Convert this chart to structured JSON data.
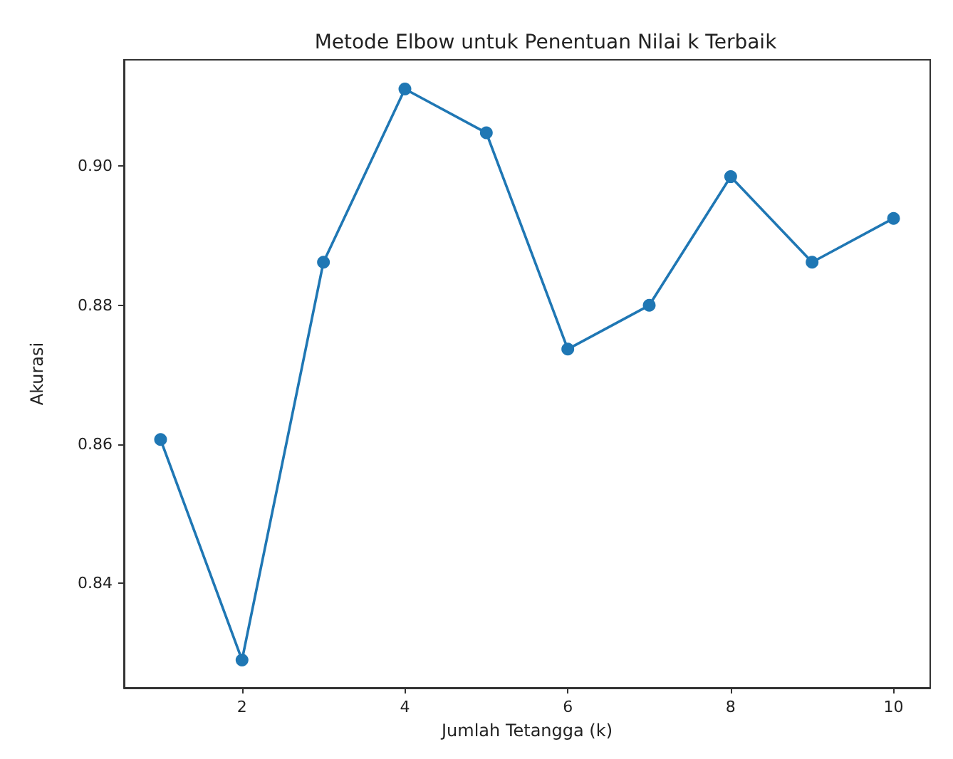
{
  "chart_data": {
    "type": "line",
    "title": "Metode Elbow untuk Penentuan Nilai k Terbaik",
    "xlabel": "Jumlah Tetangga (k)",
    "ylabel": "Akurasi",
    "x": [
      1,
      2,
      3,
      4,
      5,
      6,
      7,
      8,
      9,
      10
    ],
    "series": [
      {
        "color": "#1f77b4",
        "values": [
          0.8607,
          0.829,
          0.8862,
          0.9111,
          0.9048,
          0.8737,
          0.88,
          0.8985,
          0.8862,
          0.8925
        ]
      }
    ],
    "xlim": [
      0.55,
      10.45
    ],
    "xticks": [
      2,
      4,
      6,
      8,
      10
    ],
    "ylim": [
      0.825,
      0.9153
    ],
    "yticks": [
      0.84,
      0.86,
      0.88,
      {
        "value": 0.9,
        "label": "0.90"
      }
    ],
    "marker": "circle",
    "line_style": "solid",
    "grid": false
  }
}
